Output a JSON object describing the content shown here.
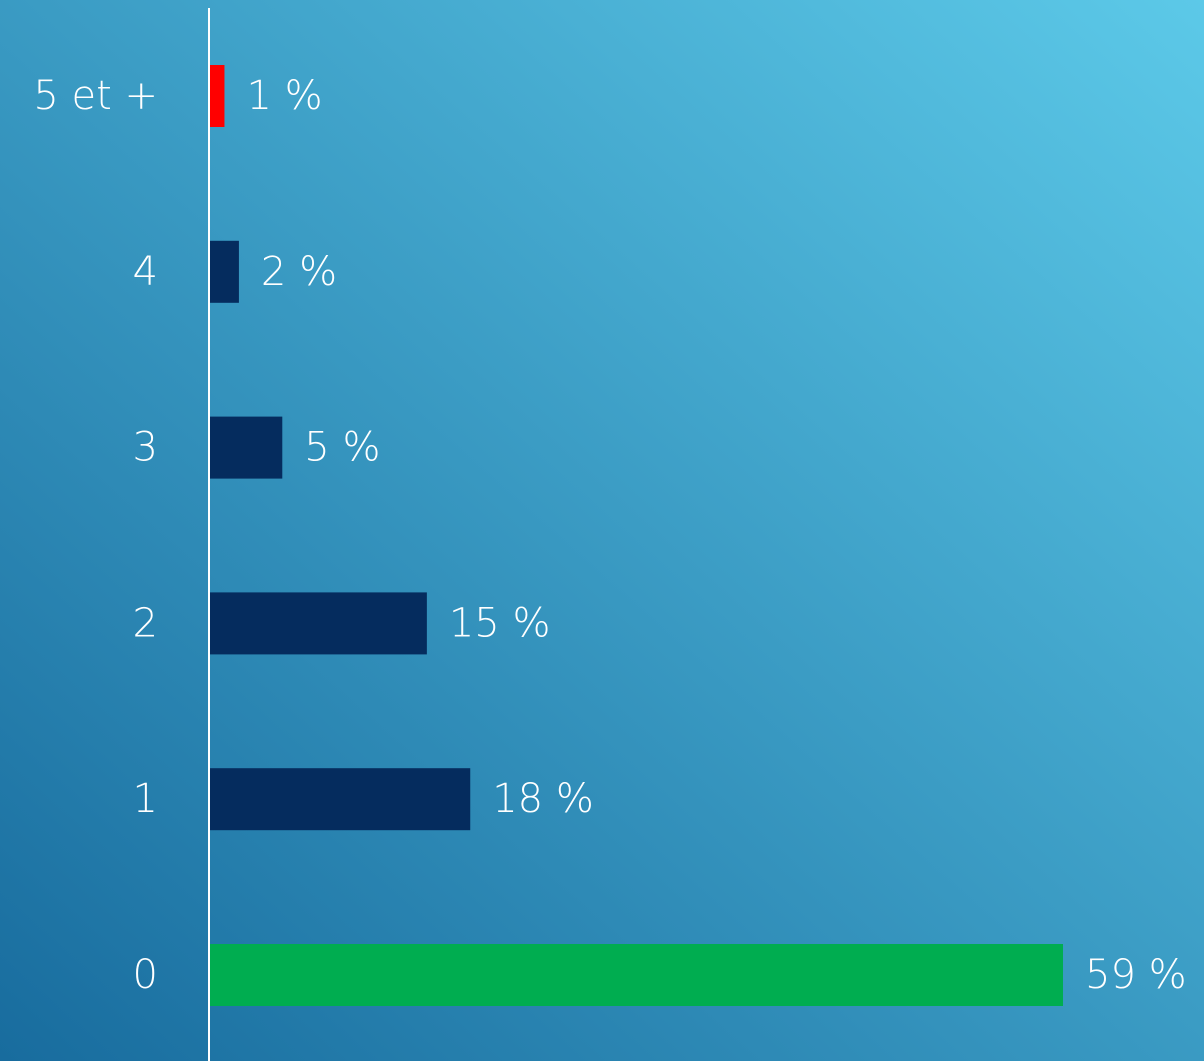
{
  "chart_data": {
    "type": "barh",
    "categories": [
      "5 et +",
      "4",
      "3",
      "2",
      "1",
      "0"
    ],
    "values": [
      1,
      2,
      5,
      15,
      18,
      59
    ],
    "value_labels": [
      "1 %",
      "2 %",
      "5 %",
      "15 %",
      "18 %",
      "59 %"
    ],
    "colors": [
      "#ff0000",
      "#052c5e",
      "#052c5e",
      "#052c5e",
      "#052c5e",
      "#00ad50"
    ]
  }
}
